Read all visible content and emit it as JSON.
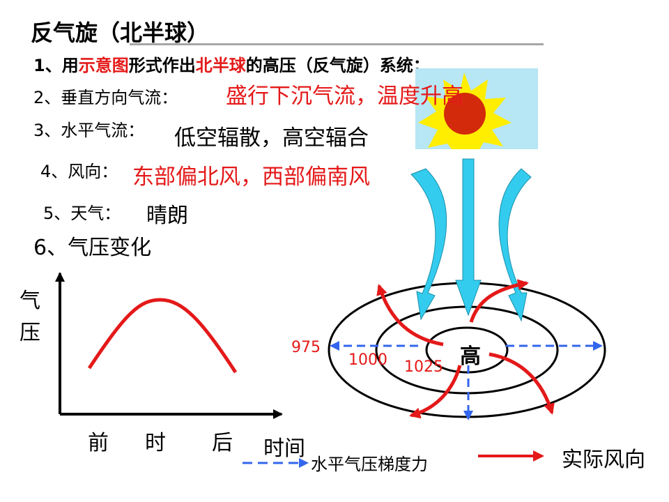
{
  "title": "反气旋（北半球）",
  "line1": {
    "prefix": "1、用",
    "highlight1": "示意图",
    "middle": "形式作出",
    "highlight2": "北半球",
    "suffix": "的高压（反气旋）系统；"
  },
  "line2": {
    "label": "2、垂直方向气流：",
    "answer": "盛行下沉气流，温度升高"
  },
  "line3": {
    "label": "3、水平气流：",
    "answer": "低空辐散，高空辐合"
  },
  "line4": {
    "label": "4、风向：",
    "answer": "东部偏北风，西部偏南风"
  },
  "line5": {
    "label": "5、天气：",
    "answer": "晴朗"
  },
  "line6": {
    "label": "6、气压变化"
  },
  "graph": {
    "y_label_1": "气",
    "y_label_2": "压",
    "x_ticks": [
      "前",
      "时",
      "后"
    ],
    "x_label": "时间"
  },
  "diagram": {
    "center_label": "高",
    "isobars": [
      "975",
      "1000",
      "1025"
    ]
  },
  "legend": {
    "gradient_force": "水平气压梯度力",
    "actual_wind": "实际风向"
  },
  "colors": {
    "red": "#e41919",
    "cyan": "#33ccee",
    "sky": "#b7e6f5",
    "sun_yellow": "#ffee00",
    "sun_core": "#d42a0c",
    "blue_dash": "#3366ee"
  }
}
